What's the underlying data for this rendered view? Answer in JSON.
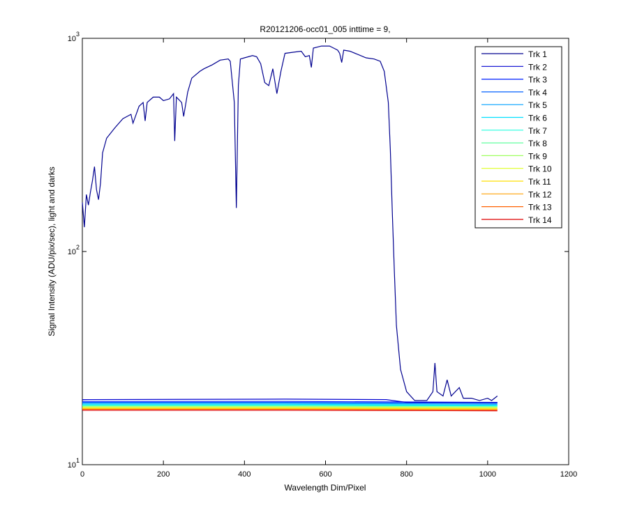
{
  "chart_data": {
    "type": "line",
    "title": "R20121206-occ01_005 inttime = 9,",
    "x_label": "Wavelength Dim/Pixel",
    "y_label": "Signal Intensity (ADU/pix/sec), light and darks",
    "xlim": [
      0,
      1200
    ],
    "xticks": [
      0,
      200,
      400,
      600,
      800,
      1000,
      1200
    ],
    "ylim": [
      10,
      1000
    ],
    "y_scale": "log",
    "yticks": [
      {
        "value": 10,
        "label": "10^1"
      },
      {
        "value": 100,
        "label": "10^2"
      },
      {
        "value": 1000,
        "label": "10^3"
      }
    ],
    "legend": "upper right",
    "series": [
      {
        "name": "Trk 1",
        "color": "#00008F",
        "x": [
          0,
          5,
          10,
          15,
          20,
          25,
          30,
          35,
          40,
          45,
          50,
          60,
          80,
          100,
          120,
          125,
          140,
          150,
          155,
          160,
          175,
          190,
          200,
          215,
          225,
          228,
          232,
          245,
          250,
          260,
          270,
          290,
          300,
          320,
          340,
          360,
          365,
          375,
          380,
          385,
          390,
          400,
          420,
          430,
          440,
          450,
          460,
          470,
          480,
          490,
          500,
          520,
          540,
          550,
          560,
          565,
          570,
          590,
          610,
          620,
          630,
          635,
          640,
          645,
          660,
          680,
          700,
          720,
          735,
          745,
          755,
          760,
          765,
          770,
          775,
          785,
          800,
          820,
          850,
          865,
          870,
          875,
          890,
          900,
          910,
          930,
          940,
          960,
          980,
          1000,
          1010,
          1024
        ],
        "values": [
          170,
          130,
          185,
          165,
          190,
          215,
          250,
          195,
          175,
          210,
          290,
          340,
          380,
          420,
          440,
          400,
          480,
          500,
          410,
          500,
          530,
          530,
          510,
          520,
          550,
          330,
          530,
          500,
          430,
          560,
          650,
          700,
          720,
          750,
          790,
          800,
          780,
          500,
          160,
          600,
          800,
          810,
          830,
          820,
          760,
          620,
          600,
          720,
          550,
          700,
          850,
          860,
          870,
          820,
          830,
          730,
          900,
          920,
          920,
          900,
          880,
          850,
          770,
          880,
          870,
          840,
          810,
          800,
          780,
          700,
          500,
          300,
          150,
          80,
          45,
          28,
          22,
          20,
          20,
          22,
          30,
          22,
          21,
          25,
          21,
          23,
          20.5,
          20.5,
          20,
          20.5,
          20,
          21
        ]
      },
      {
        "name": "Trk 2",
        "color": "#0000D0",
        "x": [
          0,
          500,
          750,
          800,
          1024
        ],
        "values": [
          20.2,
          20.3,
          20.2,
          19.6,
          19.6
        ]
      },
      {
        "name": "Trk 3",
        "color": "#0020FF",
        "x": [
          0,
          500,
          1024
        ],
        "values": [
          19.8,
          19.8,
          19.6
        ]
      },
      {
        "name": "Trk 4",
        "color": "#0060FF",
        "x": [
          0,
          500,
          1024
        ],
        "values": [
          19.6,
          19.6,
          19.4
        ]
      },
      {
        "name": "Trk 5",
        "color": "#00A0FF",
        "x": [
          0,
          500,
          1024
        ],
        "values": [
          19.4,
          19.4,
          19.2
        ]
      },
      {
        "name": "Trk 6",
        "color": "#00E0FF",
        "x": [
          0,
          500,
          1024
        ],
        "values": [
          19.2,
          19.2,
          19.0
        ]
      },
      {
        "name": "Trk 7",
        "color": "#20FFDF",
        "x": [
          0,
          500,
          1024
        ],
        "values": [
          19.0,
          19.0,
          18.9
        ]
      },
      {
        "name": "Trk 8",
        "color": "#60FF9F",
        "x": [
          0,
          500,
          1024
        ],
        "values": [
          18.9,
          18.9,
          18.8
        ]
      },
      {
        "name": "Trk 9",
        "color": "#A0FF60",
        "x": [
          0,
          500,
          1024
        ],
        "values": [
          18.7,
          18.7,
          18.6
        ]
      },
      {
        "name": "Trk 10",
        "color": "#DFFF20",
        "x": [
          0,
          500,
          1024
        ],
        "values": [
          18.6,
          18.6,
          18.5
        ]
      },
      {
        "name": "Trk 11",
        "color": "#FFDF00",
        "x": [
          0,
          500,
          1024
        ],
        "values": [
          18.4,
          18.4,
          18.3
        ]
      },
      {
        "name": "Trk 12",
        "color": "#FFA000",
        "x": [
          0,
          500,
          1024
        ],
        "values": [
          18.3,
          18.3,
          18.2
        ]
      },
      {
        "name": "Trk 13",
        "color": "#FF6000",
        "x": [
          0,
          500,
          1024
        ],
        "values": [
          18.2,
          18.2,
          18.1
        ]
      },
      {
        "name": "Trk 14",
        "color": "#DF0000",
        "x": [
          0,
          500,
          1024
        ],
        "values": [
          18.0,
          18.0,
          17.9
        ]
      }
    ]
  }
}
